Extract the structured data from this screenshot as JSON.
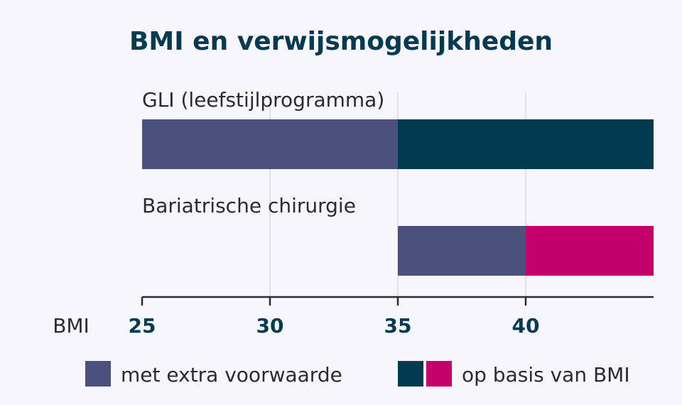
{
  "chart_data": {
    "type": "bar",
    "orientation": "horizontal",
    "stacked": true,
    "title": "BMI en verwijsmogelijkheden",
    "xlabel": "BMI",
    "xlim": [
      25,
      45
    ],
    "xticks": [
      25,
      30,
      35,
      40
    ],
    "grid": true,
    "legend_position": "bottom",
    "categories": [
      "GLI (leefstijlprogramma)",
      "Bariatrische chirurgie"
    ],
    "bars": [
      {
        "category": "GLI (leefstijlprogramma)",
        "segments": [
          {
            "series": "met extra voorwaarde",
            "from": 25,
            "to": 35,
            "color": "#4c507d"
          },
          {
            "series": "op basis van BMI",
            "from": 35,
            "to": 45,
            "color": "#023a52"
          }
        ]
      },
      {
        "category": "Bariatrische chirurgie",
        "segments": [
          {
            "series": "met extra voorwaarde",
            "from": 35,
            "to": 40,
            "color": "#4c507d"
          },
          {
            "series": "op basis van BMI",
            "from": 40,
            "to": 45,
            "color": "#c3006b"
          }
        ]
      }
    ],
    "legend": [
      {
        "label": "met extra voorwaarde",
        "colors": [
          "#4c507d"
        ]
      },
      {
        "label": "op basis van BMI",
        "colors": [
          "#023a52",
          "#c3006b"
        ]
      }
    ]
  },
  "colors": {
    "background": "#f7f6fc",
    "title": "#023a52",
    "axis": "#2a2a35",
    "grid": "#e2e1ea"
  }
}
